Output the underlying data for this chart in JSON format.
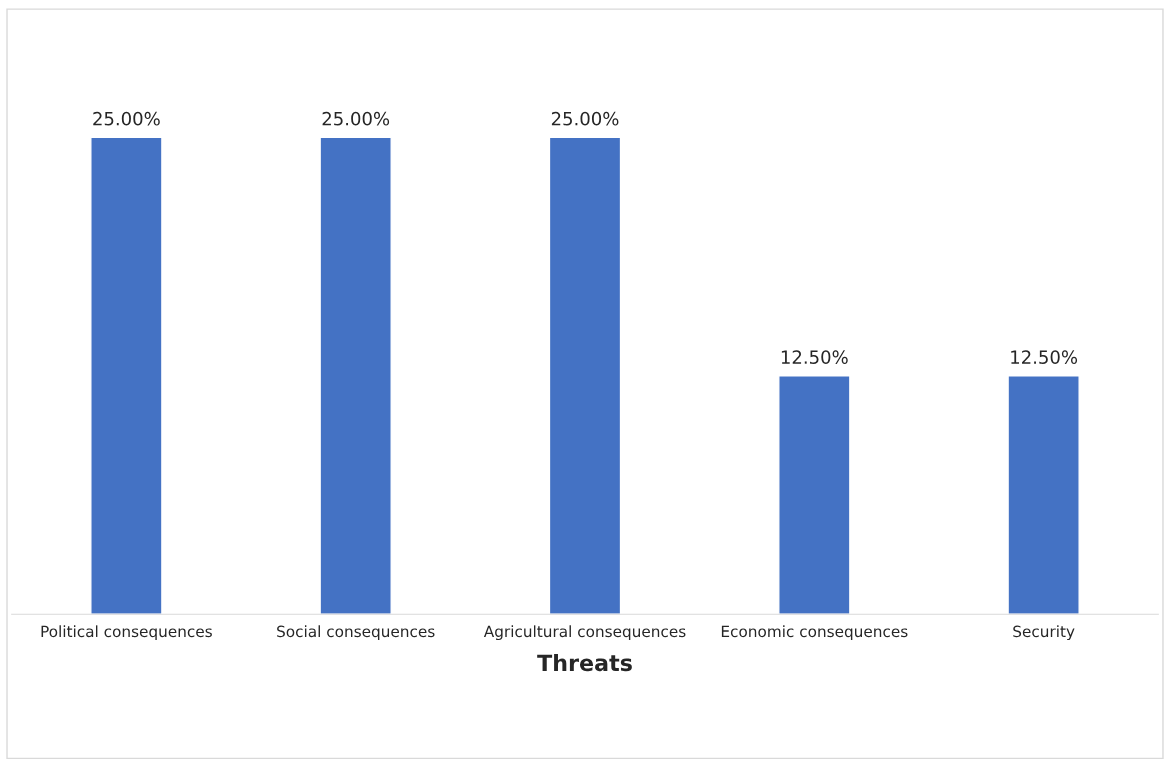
{
  "chart_data": {
    "type": "bar",
    "xlabel": "Threats",
    "categories": [
      "Political consequences",
      "Social consequences",
      "Agricultural consequences",
      "Economic consequences",
      "Security"
    ],
    "values": [
      25,
      25,
      25,
      12.5,
      12.5
    ],
    "value_labels": [
      "25.00%",
      "25.00%",
      "25.00%",
      "12.50%",
      "12.50%"
    ],
    "color": "#4472c4",
    "grid": false,
    "legend": false
  }
}
